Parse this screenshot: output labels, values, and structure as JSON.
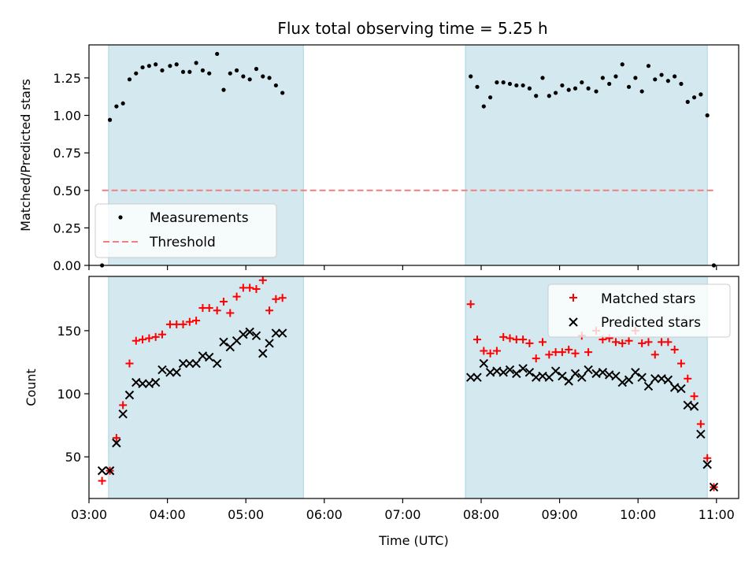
{
  "figure": {
    "title": "Flux total observing time = 5.25 h"
  },
  "colors": {
    "observing_span": "#d3e9ef",
    "observing_span_edge": "#a9d3df",
    "measurements": "#000000",
    "threshold": "#f08080",
    "matched": "#ff0000",
    "predicted": "#000000"
  },
  "chart_data": [
    {
      "type": "scatter",
      "title": "Flux total observing time = 5.25 h",
      "ylabel": "Matched/Predicted stars",
      "xlabel": "",
      "x_unit": "time UTC (HH:MM)",
      "xlim": [
        "03:00",
        "11:17"
      ],
      "ylim": [
        0,
        1.47
      ],
      "yticks": [
        "0.00",
        "0.25",
        "0.50",
        "0.75",
        "1.00",
        "1.25"
      ],
      "show_x_tick_labels": false,
      "grid": false,
      "legend": {
        "placement": "lower-left",
        "entries": [
          "Measurements",
          "Threshold"
        ]
      },
      "shaded_spans": [
        [
          "03:15",
          "05:44"
        ],
        [
          "07:48",
          "10:53"
        ]
      ],
      "series": [
        {
          "name": "Measurements",
          "marker": "dot",
          "x": [
            "03:10",
            "03:16",
            "03:21",
            "03:26",
            "03:31",
            "03:36",
            "03:41",
            "03:46",
            "03:51",
            "03:56",
            "04:02",
            "04:07",
            "04:12",
            "04:17",
            "04:22",
            "04:27",
            "04:32",
            "04:38",
            "04:43",
            "04:48",
            "04:53",
            "04:58",
            "05:03",
            "05:08",
            "05:13",
            "05:18",
            "05:23",
            "05:28",
            "07:52",
            "07:57",
            "08:02",
            "08:07",
            "08:12",
            "08:17",
            "08:22",
            "08:27",
            "08:32",
            "08:37",
            "08:42",
            "08:47",
            "08:52",
            "08:57",
            "09:02",
            "09:07",
            "09:12",
            "09:17",
            "09:22",
            "09:28",
            "09:33",
            "09:38",
            "09:43",
            "09:48",
            "09:53",
            "09:58",
            "10:03",
            "10:08",
            "10:13",
            "10:18",
            "10:23",
            "10:28",
            "10:33",
            "10:38",
            "10:43",
            "10:48",
            "10:53",
            "10:58"
          ],
          "y": [
            0.0,
            0.97,
            1.06,
            1.08,
            1.24,
            1.28,
            1.32,
            1.33,
            1.34,
            1.3,
            1.33,
            1.34,
            1.29,
            1.29,
            1.35,
            1.3,
            1.28,
            1.41,
            1.17,
            1.28,
            1.3,
            1.26,
            1.24,
            1.31,
            1.26,
            1.25,
            1.2,
            1.15,
            1.26,
            1.19,
            1.06,
            1.12,
            1.22,
            1.22,
            1.21,
            1.2,
            1.2,
            1.18,
            1.13,
            1.25,
            1.13,
            1.15,
            1.2,
            1.17,
            1.18,
            1.22,
            1.18,
            1.16,
            1.25,
            1.21,
            1.26,
            1.34,
            1.19,
            1.25,
            1.16,
            1.33,
            1.24,
            1.27,
            1.23,
            1.26,
            1.21,
            1.09,
            1.12,
            1.14,
            1.0,
            0.0
          ]
        },
        {
          "name": "Threshold",
          "style": "dashed-line",
          "x": [
            "03:10",
            "10:58"
          ],
          "y": [
            0.5,
            0.5
          ]
        }
      ]
    },
    {
      "type": "scatter",
      "title": "",
      "ylabel": "Count",
      "xlabel": "Time (UTC)",
      "x_unit": "time UTC (HH:MM)",
      "xlim": [
        "03:00",
        "11:17"
      ],
      "ylim": [
        17,
        193
      ],
      "yticks": [
        "50",
        "100",
        "150"
      ],
      "xticks": [
        "03:00",
        "04:00",
        "05:00",
        "06:00",
        "07:00",
        "08:00",
        "09:00",
        "10:00",
        "11:00"
      ],
      "grid": false,
      "legend": {
        "placement": "upper-right",
        "entries": [
          "Matched stars",
          "Predicted stars"
        ]
      },
      "shaded_spans": [
        [
          "03:15",
          "05:44"
        ],
        [
          "07:48",
          "10:53"
        ]
      ],
      "series": [
        {
          "name": "Matched stars",
          "marker": "plus",
          "x": [
            "03:10",
            "03:16",
            "03:21",
            "03:26",
            "03:31",
            "03:36",
            "03:41",
            "03:46",
            "03:51",
            "03:56",
            "04:02",
            "04:07",
            "04:12",
            "04:17",
            "04:22",
            "04:27",
            "04:32",
            "04:38",
            "04:43",
            "04:48",
            "04:53",
            "04:58",
            "05:03",
            "05:08",
            "05:13",
            "05:18",
            "05:23",
            "05:28",
            "07:52",
            "07:57",
            "08:02",
            "08:07",
            "08:12",
            "08:17",
            "08:22",
            "08:27",
            "08:32",
            "08:37",
            "08:42",
            "08:47",
            "08:52",
            "08:57",
            "09:02",
            "09:07",
            "09:12",
            "09:17",
            "09:22",
            "09:28",
            "09:33",
            "09:38",
            "09:43",
            "09:48",
            "09:53",
            "09:58",
            "10:03",
            "10:08",
            "10:13",
            "10:18",
            "10:23",
            "10:28",
            "10:33",
            "10:38",
            "10:43",
            "10:48",
            "10:53",
            "10:58"
          ],
          "y": [
            31,
            39,
            65,
            91,
            124,
            142,
            143,
            144,
            145,
            147,
            155,
            155,
            155,
            157,
            158,
            168,
            168,
            166,
            173,
            164,
            177,
            184,
            184,
            183,
            190,
            166,
            175,
            176,
            171,
            143,
            134,
            132,
            134,
            145,
            144,
            143,
            143,
            140,
            128,
            141,
            131,
            133,
            133,
            135,
            132,
            146,
            133,
            150,
            143,
            144,
            141,
            140,
            142,
            150,
            140,
            141,
            131,
            141,
            141,
            135,
            124,
            112,
            98,
            76,
            49,
            26
          ],
          "y_fix": null
        },
        {
          "name": "Predicted stars",
          "marker": "x",
          "x": [
            "03:10",
            "03:16",
            "03:21",
            "03:26",
            "03:31",
            "03:36",
            "03:41",
            "03:46",
            "03:51",
            "03:56",
            "04:02",
            "04:07",
            "04:12",
            "04:17",
            "04:22",
            "04:27",
            "04:32",
            "04:38",
            "04:43",
            "04:48",
            "04:53",
            "04:58",
            "05:03",
            "05:08",
            "05:13",
            "05:18",
            "05:23",
            "05:28",
            "07:52",
            "07:57",
            "08:02",
            "08:07",
            "08:12",
            "08:17",
            "08:22",
            "08:27",
            "08:32",
            "08:37",
            "08:42",
            "08:47",
            "08:52",
            "08:57",
            "09:02",
            "09:07",
            "09:12",
            "09:17",
            "09:22",
            "09:28",
            "09:33",
            "09:38",
            "09:43",
            "09:48",
            "09:53",
            "09:58",
            "10:03",
            "10:08",
            "10:13",
            "10:18",
            "10:23",
            "10:28",
            "10:33",
            "10:38",
            "10:43",
            "10:48",
            "10:53",
            "10:58"
          ],
          "y": [
            39,
            39,
            61,
            84,
            99,
            109,
            108,
            108,
            109,
            119,
            117,
            117,
            124,
            124,
            124,
            130,
            129,
            124,
            141,
            137,
            142,
            147,
            149,
            146,
            132,
            140,
            148,
            148,
            113,
            113,
            124,
            117,
            118,
            117,
            119,
            116,
            120,
            117,
            113,
            114,
            113,
            118,
            114,
            110,
            116,
            113,
            119,
            116,
            117,
            115,
            114,
            109,
            111,
            117,
            113,
            106,
            112,
            112,
            111,
            105,
            104,
            91,
            90,
            68,
            44,
            26
          ]
        }
      ]
    }
  ]
}
